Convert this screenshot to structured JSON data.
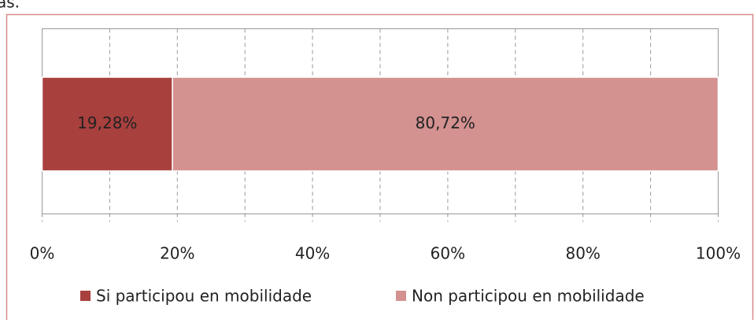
{
  "fragment": "as.",
  "chart_data": {
    "type": "bar",
    "orientation": "horizontal",
    "stacked": true,
    "categories": [
      null
    ],
    "series": [
      {
        "name": "Si participou en mobilidade",
        "color": "#a8403e",
        "values": [
          19.28
        ],
        "value_labels": [
          "19,28%"
        ]
      },
      {
        "name": "Non participou en mobilidade",
        "color": "#d39190",
        "values": [
          80.72
        ],
        "value_labels": [
          "80,72%"
        ]
      }
    ],
    "xlim": [
      0,
      100
    ],
    "xticks": [
      {
        "value": 0,
        "label": "0%"
      },
      {
        "value": 20,
        "label": "20%"
      },
      {
        "value": 40,
        "label": "40%"
      },
      {
        "value": 60,
        "label": "60%"
      },
      {
        "value": 80,
        "label": "80%"
      },
      {
        "value": 100,
        "label": "100%"
      }
    ],
    "minor_xticks": [
      10,
      30,
      50,
      70,
      90
    ],
    "grid": true,
    "legend": "bottom"
  }
}
